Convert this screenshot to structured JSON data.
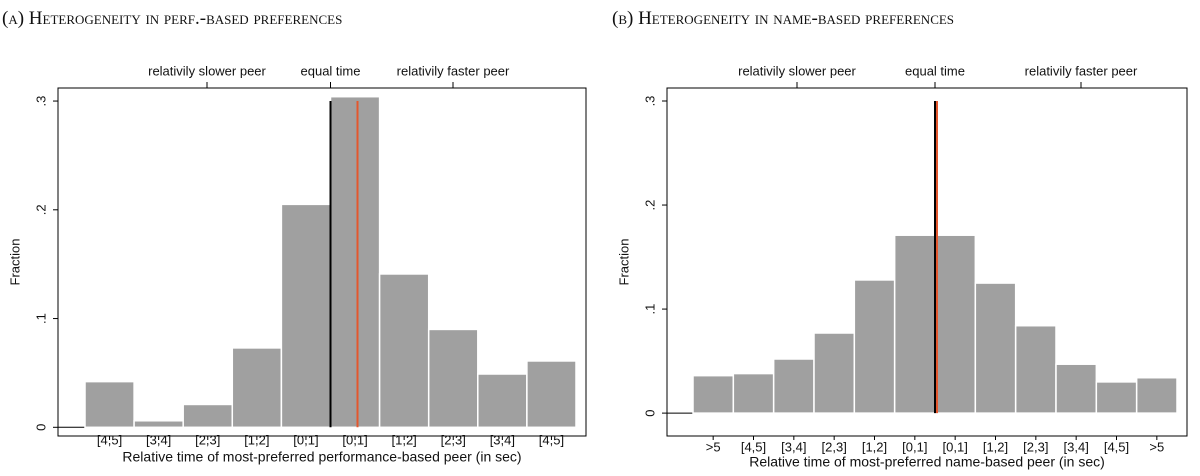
{
  "chart_data": [
    {
      "type": "bar",
      "title": "(a) Heterogeneity in perf.-based preferences",
      "x_label": "Relative time of most-preferred performance-based peer (in sec)",
      "y_label": "Fraction",
      "top_labels": [
        "relativily slower peer",
        "equal time",
        "relativily faster peer"
      ],
      "categories": [
        "[4,5]",
        "[3,4]",
        "[2,3]",
        "[1,2]",
        "[0,1]",
        "[0,1]",
        "[1,2]",
        "[2,3]",
        "[3,4]",
        "[4,5]"
      ],
      "values": [
        0.042,
        0.006,
        0.021,
        0.073,
        0.205,
        0.304,
        0.141,
        0.09,
        0.049,
        0.061
      ],
      "color": "#a0a0a0",
      "ylim": [
        -0.008,
        0.312
      ],
      "yticks": [
        0,
        {
          "value": 0.1,
          "label": ".1"
        },
        {
          "value": 0.2,
          "label": ".2"
        },
        {
          "value": 0.3,
          "label": ".3"
        }
      ]
    },
    {
      "type": "bar",
      "title": "(b) Heterogeneity in name-based preferences",
      "x_label": "Relative time of most-preferred name-based peer (in sec)",
      "y_label": "Fraction",
      "top_labels": [
        "relativily slower peer",
        "equal time",
        "relativily faster peer"
      ],
      "categories": [
        ">5",
        "[4,5]",
        "[3,4]",
        "[2,3]",
        "[1,2]",
        "[0,1]",
        "[0,1]",
        "[1,2]",
        "[2,3]",
        "[3,4]",
        "[4,5]",
        ">5"
      ],
      "values": [
        0.036,
        0.038,
        0.052,
        0.077,
        0.128,
        0.171,
        0.171,
        0.125,
        0.084,
        0.047,
        0.03,
        0.034
      ],
      "color": "#a0a0a0",
      "ylim": [
        -0.022,
        0.3125
      ],
      "yticks": [
        0,
        {
          "value": 0.1,
          "label": ".1"
        },
        {
          "value": 0.2,
          "label": ".2"
        },
        {
          "value": 0.3,
          "label": ".3"
        }
      ]
    }
  ]
}
